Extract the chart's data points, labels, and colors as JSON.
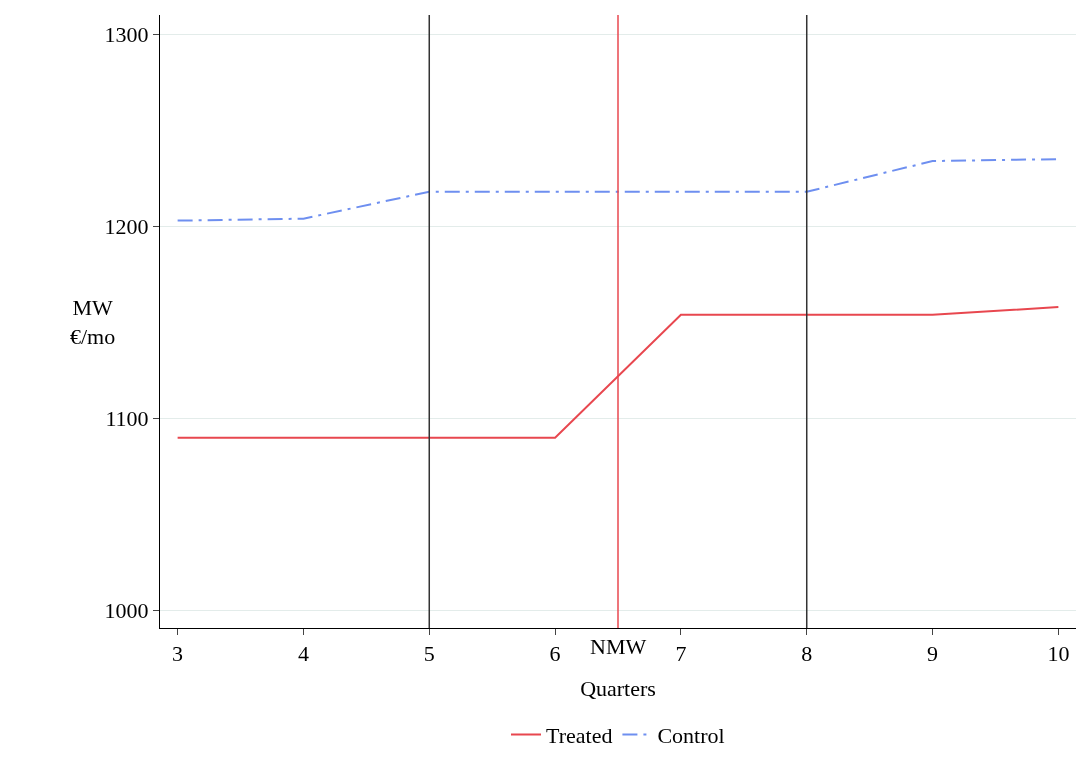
{
  "chart_data": {
    "type": "line",
    "xlabel": "Quarters",
    "ylabel": "MW\n€/mo",
    "x": [
      3,
      4,
      5,
      6,
      7,
      8,
      9,
      10
    ],
    "series": [
      {
        "name": "Treated",
        "color": "#e8474f",
        "line_style": "solid",
        "values": [
          1090,
          1090,
          1090,
          1090,
          1154,
          1154,
          1154,
          1158
        ]
      },
      {
        "name": "Control",
        "color": "#6e8ff0",
        "line_style": "dashdot",
        "values": [
          1203,
          1204,
          1218,
          1218,
          1218,
          1218,
          1234,
          1235
        ]
      }
    ],
    "xlim": [
      2.86,
      10.14
    ],
    "xticks": [
      3,
      4,
      5,
      6,
      7,
      8,
      9,
      10
    ],
    "ylim": [
      991,
      1310
    ],
    "yticks": [
      1000,
      1100,
      1200,
      1300
    ],
    "grid": "y",
    "legend": "bottom",
    "marker": "none",
    "ref_lines": [
      {
        "axis": "x",
        "value": 5,
        "color": "#333333"
      },
      {
        "axis": "x",
        "value": 8,
        "color": "#333333"
      },
      {
        "axis": "x",
        "value": 6.5,
        "color": "#e8474f",
        "label": "NMW"
      }
    ]
  }
}
